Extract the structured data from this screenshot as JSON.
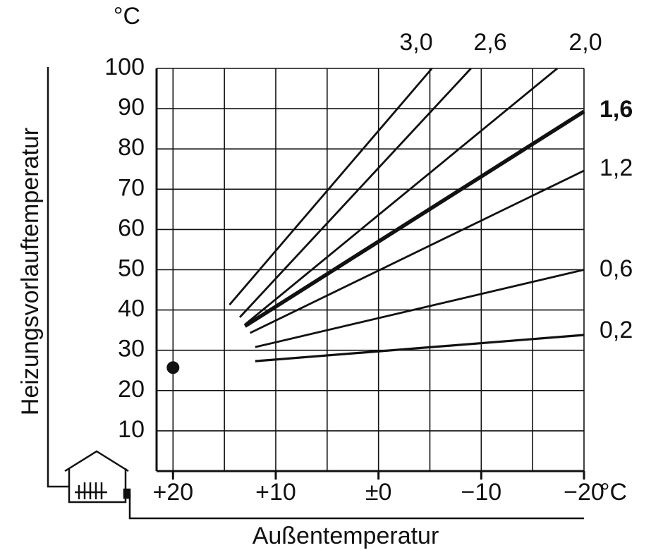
{
  "chart_data": {
    "type": "line",
    "y_label": "Heizungsvorlauftemperatur",
    "x_label": "Außentemperatur",
    "y_unit": "°C",
    "x_unit": "°C",
    "xlim": [
      21.6,
      -20
    ],
    "ylim": [
      0,
      100
    ],
    "xticks": [
      {
        "value": 20,
        "label": "+20"
      },
      {
        "value": 10,
        "label": "+10"
      },
      {
        "value": 0,
        "label": "±0"
      },
      {
        "value": -10,
        "label": "−10"
      },
      {
        "value": -20,
        "label": "−20"
      }
    ],
    "x_minor_gridlines": [
      15,
      5,
      -5,
      -15
    ],
    "yticks": [
      10,
      20,
      30,
      40,
      50,
      60,
      70,
      80,
      90,
      100
    ],
    "grid": true,
    "series": [
      {
        "name": "3,0",
        "color": "#111111",
        "linewidth": 2.8,
        "x": [
          14.5,
          -5.2
        ],
        "values": [
          41.3,
          100
        ]
      },
      {
        "name": "2,6",
        "color": "#111111",
        "linewidth": 2.8,
        "x": [
          13.5,
          -9
        ],
        "values": [
          38.2,
          100
        ]
      },
      {
        "name": "2,0",
        "color": "#111111",
        "linewidth": 2.8,
        "x": [
          13,
          -17.4
        ],
        "values": [
          36.4,
          100
        ]
      },
      {
        "name": "1,6",
        "color": "#111111",
        "linewidth": 5.5,
        "x": [
          13,
          -20
        ],
        "values": [
          36,
          89.3
        ]
      },
      {
        "name": "1,2",
        "color": "#111111",
        "linewidth": 2.8,
        "x": [
          12.5,
          -20
        ],
        "values": [
          34.3,
          74.6
        ]
      },
      {
        "name": "0,6",
        "color": "#111111",
        "linewidth": 2.8,
        "x": [
          12,
          -20
        ],
        "values": [
          30.8,
          50
        ]
      },
      {
        "name": "0,2",
        "color": "#111111",
        "linewidth": 3.2,
        "x": [
          12,
          -20
        ],
        "values": [
          27.3,
          33.8
        ]
      }
    ],
    "marker": {
      "x": 20,
      "y": 25.7,
      "color": "#111111"
    }
  }
}
